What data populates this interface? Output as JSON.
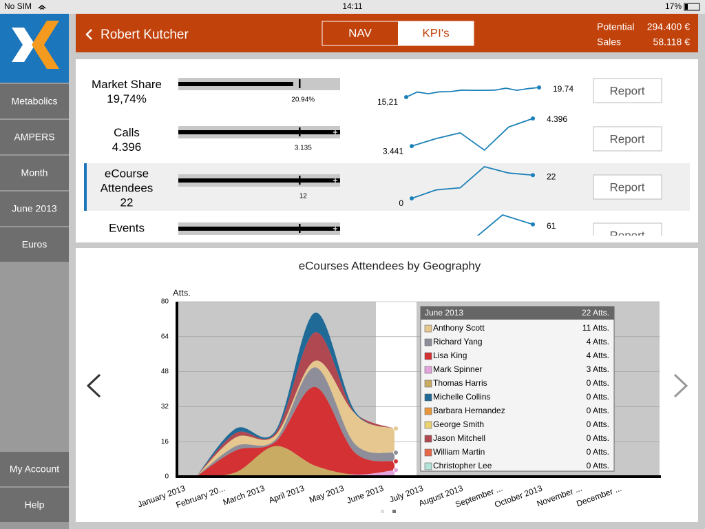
{
  "status": {
    "carrier": "No SIM",
    "time": "14:11",
    "battery": "17%"
  },
  "sidebar": {
    "items": [
      "Metabolics",
      "AMPERS",
      "Month",
      "June 2013",
      "Euros"
    ],
    "bottom": [
      "My Account",
      "Help"
    ]
  },
  "header": {
    "title": "Robert Kutcher",
    "tabs": [
      "NAV",
      "KPI's"
    ],
    "potential_label": "Potential",
    "potential_value": "294.400 €",
    "sales_label": "Sales",
    "sales_value": "58.118 €"
  },
  "kpis": [
    {
      "name": [
        "Market Share"
      ],
      "value": "19,74%",
      "bar": 0.71,
      "marker": 0.75,
      "overflow": false,
      "target": "20.94%",
      "spark": [
        15.21,
        17.6,
        16.8,
        17.7,
        17.8,
        18.5,
        18.4,
        18.4,
        18.5,
        19.4,
        18.4,
        19.2,
        19.74
      ],
      "spark_start": "15,21",
      "spark_end": "19.74",
      "button": "Report"
    },
    {
      "name": [
        "Calls"
      ],
      "value": "4.396",
      "bar": 1,
      "marker": 0.75,
      "overflow": true,
      "target": "3.135",
      "spark": [
        3441,
        3700,
        3900,
        3300,
        4100,
        4396
      ],
      "spark_start": "3.441",
      "spark_end": "4.396",
      "button": "Report"
    },
    {
      "name": [
        "eCourse",
        "Attendees"
      ],
      "value": "22",
      "bar": 1,
      "marker": 0.75,
      "overflow": true,
      "target": "12",
      "spark": [
        0,
        8,
        10,
        30,
        24,
        22
      ],
      "spark_start": "0",
      "spark_end": "22",
      "button": "Report"
    },
    {
      "name": [
        "Events"
      ],
      "bar": 1,
      "marker": 0.75,
      "overflow": true,
      "spark": [
        40,
        44,
        46,
        70,
        61
      ],
      "spark_end": "61",
      "button": "Report"
    }
  ],
  "chart_data": {
    "type": "area",
    "title": "eCourses Attendees by Geography",
    "y_label": "Atts.",
    "categories": [
      "January 2013",
      "February 20...",
      "March 2013",
      "April 2013",
      "May 2013",
      "June 2013",
      "July 2013",
      "August 2013",
      "September ...",
      "October 2013",
      "November ...",
      "December ..."
    ],
    "ylim": [
      0,
      80
    ],
    "yticks": [
      0,
      16,
      32,
      48,
      64,
      80
    ],
    "grid": true,
    "series": [
      {
        "name": "Anthony Scott",
        "color": "#e6c78f",
        "values": [
          0,
          4,
          2,
          3,
          14,
          11,
          null,
          null,
          null,
          null,
          null,
          null
        ]
      },
      {
        "name": "Richard Yang",
        "color": "#8d8e99",
        "values": [
          0,
          2,
          1,
          9,
          4,
          4,
          null,
          null,
          null,
          null,
          null,
          null
        ]
      },
      {
        "name": "Lisa King",
        "color": "#d33134",
        "values": [
          0,
          10,
          2,
          36,
          10,
          4,
          null,
          null,
          null,
          null,
          null,
          null
        ]
      },
      {
        "name": "Mark Spinner",
        "color": "#e3a3dc",
        "values": [
          0,
          0,
          0,
          0,
          1,
          3,
          null,
          null,
          null,
          null,
          null,
          null
        ]
      },
      {
        "name": "Thomas Harris",
        "color": "#c9ab63",
        "values": [
          0,
          2,
          14,
          5,
          0,
          0,
          null,
          null,
          null,
          null,
          null,
          null
        ]
      },
      {
        "name": "Michelle Collins",
        "color": "#1f6a97",
        "values": [
          0,
          2,
          1,
          9,
          1,
          0,
          null,
          null,
          null,
          null,
          null,
          null
        ]
      },
      {
        "name": "Barbara Hernandez",
        "color": "#e8973d",
        "values": [
          0,
          0,
          0,
          0,
          0,
          0,
          null,
          null,
          null,
          null,
          null,
          null
        ]
      },
      {
        "name": "George Smith",
        "color": "#ead272",
        "values": [
          0,
          0,
          0,
          0,
          0,
          0,
          null,
          null,
          null,
          null,
          null,
          null
        ]
      },
      {
        "name": "Jason Mitchell",
        "color": "#b04852",
        "values": [
          0,
          2,
          1,
          13,
          0,
          0,
          null,
          null,
          null,
          null,
          null,
          null
        ]
      },
      {
        "name": "William Martin",
        "color": "#e8694a",
        "values": [
          0,
          0,
          0,
          0,
          0,
          0,
          null,
          null,
          null,
          null,
          null,
          null
        ]
      },
      {
        "name": "Christopher Lee",
        "color": "#b3e2d9",
        "values": [
          0,
          0,
          0,
          0,
          0,
          0,
          null,
          null,
          null,
          null,
          null,
          null
        ]
      }
    ],
    "tooltip": {
      "category": "June 2013",
      "total": "22 Atts.",
      "labels": [
        "11 Atts.",
        "4 Atts.",
        "4 Atts.",
        "3 Atts.",
        "0 Atts.",
        "0 Atts.",
        "0 Atts.",
        "0 Atts.",
        "0 Atts.",
        "0 Atts.",
        "0 Atts."
      ]
    }
  }
}
